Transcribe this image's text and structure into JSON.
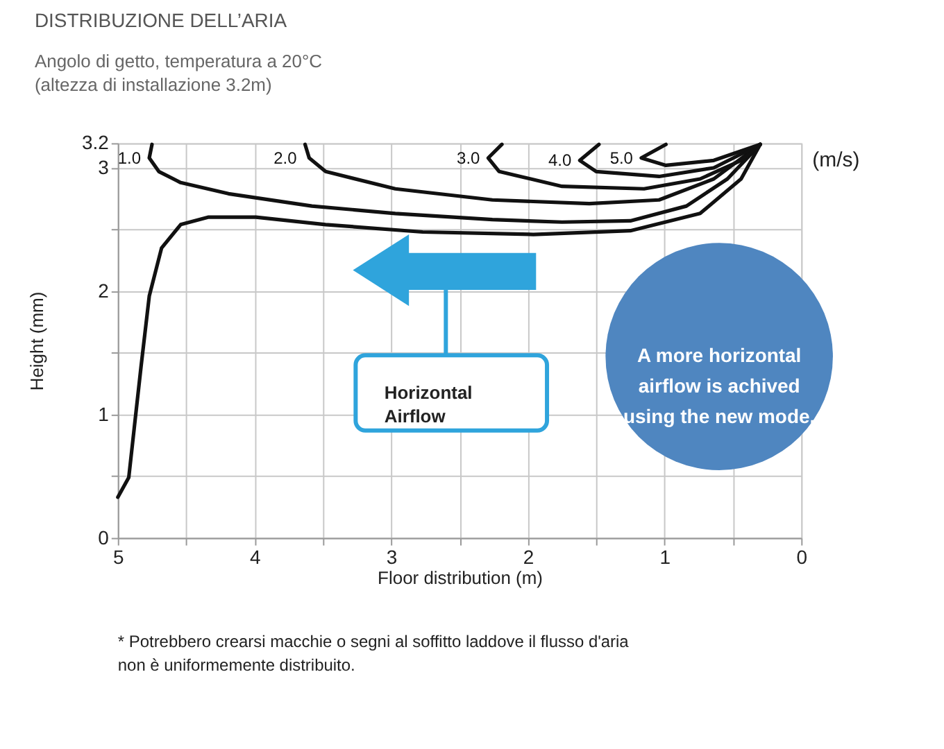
{
  "chart_data": {
    "type": "line",
    "title": "DISTRIBUZIONE DELL’ARIA",
    "subtitle": "Angolo di getto, temperatura a 20°C\n(altezza di installazione 3.2m)",
    "xlabel": "Floor distribution (m)",
    "ylabel": "Height (mm)",
    "xlim": [
      5,
      0
    ],
    "xticks": [
      5,
      {
        "value": 4.5,
        "label": null
      },
      4,
      {
        "value": 3.5,
        "label": null
      },
      3,
      {
        "value": 2.5,
        "label": null
      },
      2,
      {
        "value": 1.5,
        "label": null
      },
      1,
      {
        "value": 0.5,
        "label": null
      },
      0
    ],
    "ylim": [
      0,
      3.2
    ],
    "yticks": [
      0,
      {
        "value": 0.5,
        "label": null
      },
      1,
      {
        "value": 1.5,
        "label": null
      },
      2,
      {
        "value": 2.5,
        "label": null
      },
      3,
      3.2
    ],
    "grid": true,
    "legend": false,
    "marker": "none",
    "line_style": "solid",
    "series": [
      {
        "name": "1.0",
        "color": "#111111",
        "x": [
          4.75,
          4.77,
          4.7,
          4.54,
          4.19,
          3.58,
          2.97,
          2.26,
          1.75,
          1.25,
          0.84,
          0.54,
          0.3
        ],
        "values": [
          3.19,
          3.08,
          2.97,
          2.88,
          2.79,
          2.69,
          2.63,
          2.58,
          2.56,
          2.57,
          2.69,
          2.91,
          3.19
        ]
      },
      {
        "name": "2.0",
        "color": "#111111",
        "x": [
          3.63,
          3.6,
          3.48,
          2.97,
          2.26,
          1.55,
          1.04,
          0.64,
          0.3
        ],
        "values": [
          3.19,
          3.08,
          2.97,
          2.83,
          2.74,
          2.71,
          2.74,
          2.91,
          3.19
        ]
      },
      {
        "name": "3.0",
        "color": "#111111",
        "x": [
          2.19,
          2.29,
          2.21,
          1.75,
          1.15,
          0.74,
          0.44,
          0.3
        ],
        "values": [
          3.19,
          3.08,
          2.97,
          2.85,
          2.83,
          2.91,
          3.06,
          3.19
        ]
      },
      {
        "name": "4.0",
        "color": "#111111",
        "x": [
          1.48,
          1.62,
          1.5,
          1.04,
          0.64,
          0.3
        ],
        "values": [
          3.19,
          3.06,
          2.97,
          2.93,
          3.0,
          3.19
        ]
      },
      {
        "name": "5.0",
        "color": "#111111",
        "x": [
          0.99,
          1.17,
          0.99,
          0.64,
          0.3
        ],
        "values": [
          3.19,
          3.08,
          3.02,
          3.06,
          3.19
        ]
      },
      {
        "color": "#111111",
        "x": [
          5.0,
          4.92,
          4.88,
          4.83,
          4.77,
          4.68,
          4.54,
          4.34,
          3.99,
          3.48,
          2.77,
          1.96,
          1.25,
          0.74,
          0.44,
          0.3
        ],
        "values": [
          0.33,
          0.49,
          0.89,
          1.39,
          1.96,
          2.35,
          2.54,
          2.6,
          2.6,
          2.54,
          2.48,
          2.46,
          2.49,
          2.63,
          2.91,
          3.19
        ]
      }
    ],
    "annotations": [
      "(m/s)",
      "Horizontal Airflow",
      "A more horizontal airflow is achived using the new mode.",
      "* Potrebbero crearsi macchie o segni al soffitto laddove il flusso d'aria non è uniformemente distribuito."
    ]
  }
}
